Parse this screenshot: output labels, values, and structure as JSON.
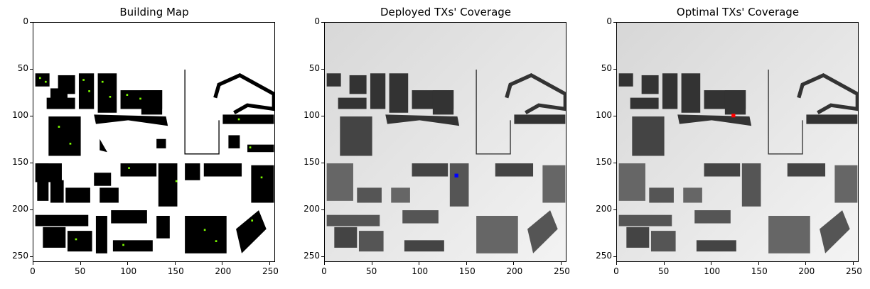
{
  "panels": [
    {
      "title": "Building Map",
      "transmitter_color": "",
      "transmitter_xy": []
    },
    {
      "title": "Deployed TXs' Coverage",
      "transmitter_color": "#0000ff",
      "transmitter_xy": [
        139,
        163
      ]
    },
    {
      "title": "Optimal TXs' Coverage",
      "transmitter_color": "#ff0000",
      "transmitter_xy": [
        123,
        99
      ]
    }
  ],
  "x_ticks": [
    "0",
    "50",
    "100",
    "150",
    "200",
    "250"
  ],
  "y_ticks": [
    "0",
    "50",
    "100",
    "150",
    "200",
    "250"
  ],
  "grid_size": 256,
  "colors": {
    "building_map_bg": "#ffffff",
    "building_fill": "#000000",
    "marker_green": "#7CFC00",
    "coverage_bg": "#e6e6e6",
    "building_dark": "#333333",
    "building_mid": "#666666"
  }
}
